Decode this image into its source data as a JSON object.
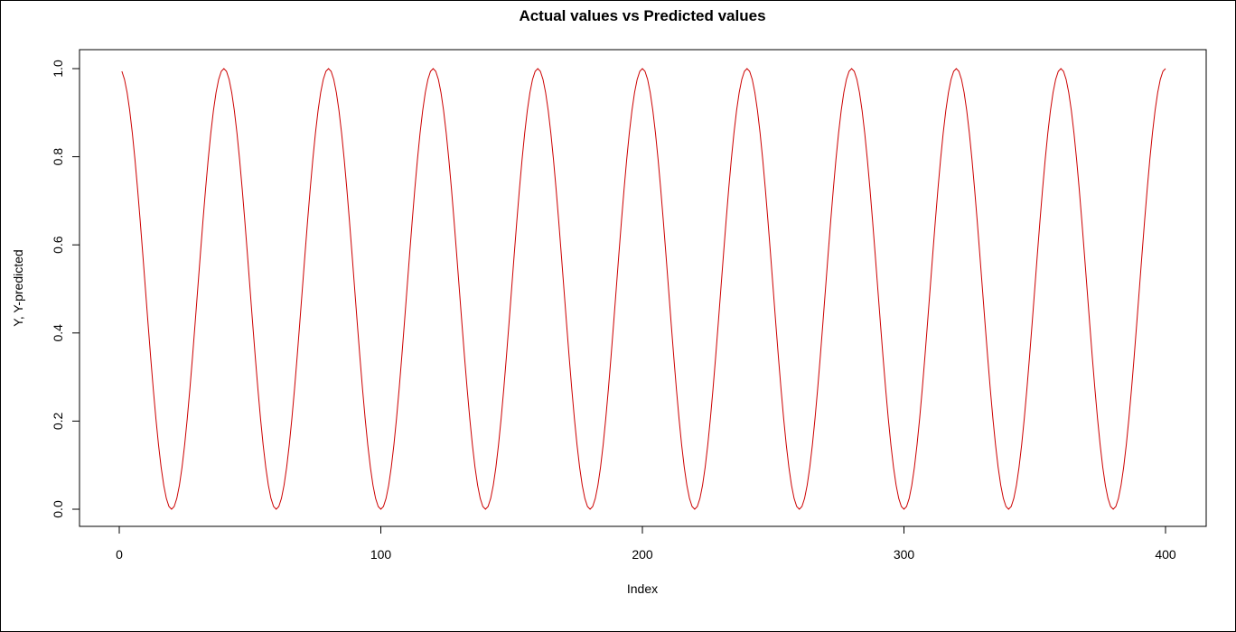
{
  "chart_data": {
    "type": "line",
    "title": "Actual values vs Predicted values",
    "xlabel": "Index",
    "ylabel": "Y, Y-predicted",
    "xlim": [
      0,
      400
    ],
    "ylim": [
      0.0,
      1.0
    ],
    "xticks": [
      0,
      100,
      200,
      300,
      400
    ],
    "xtick_labels": [
      "0",
      "100",
      "200",
      "300",
      "400"
    ],
    "yticks": [
      0.0,
      0.2,
      0.4,
      0.6,
      0.8,
      1.0
    ],
    "ytick_labels": [
      "0.0",
      "0.2",
      "0.4",
      "0.6",
      "0.8",
      "1.0"
    ],
    "grid": false,
    "legend": "none",
    "series": [
      {
        "color": "#cc0000",
        "x_start": 1,
        "x_end": 400,
        "function": "y = (cos(2*pi*x/40) + 1) / 2",
        "period": 40,
        "peaks_at": [
          40,
          80,
          120,
          160,
          200,
          240,
          280,
          320,
          360,
          400
        ],
        "troughs_at": [
          20,
          60,
          100,
          140,
          180,
          220,
          260,
          300,
          340,
          380
        ],
        "max": 1.0,
        "min": 0.0
      }
    ]
  }
}
